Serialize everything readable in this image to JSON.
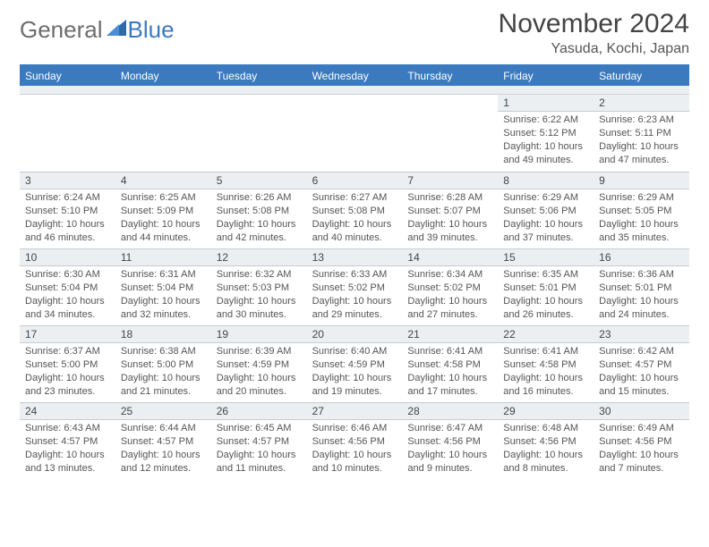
{
  "brand": {
    "word1": "General",
    "word2": "Blue"
  },
  "title": "November 2024",
  "location": "Yasuda, Kochi, Japan",
  "weekdays": [
    "Sunday",
    "Monday",
    "Tuesday",
    "Wednesday",
    "Thursday",
    "Friday",
    "Saturday"
  ],
  "colors": {
    "accent": "#3b7abf",
    "band": "#eceff1",
    "text": "#555555",
    "title": "#444444",
    "logo_gray": "#6d6d6d"
  },
  "weeks": [
    [
      {
        "day": "",
        "sunrise": "",
        "sunset": "",
        "daylight": ""
      },
      {
        "day": "",
        "sunrise": "",
        "sunset": "",
        "daylight": ""
      },
      {
        "day": "",
        "sunrise": "",
        "sunset": "",
        "daylight": ""
      },
      {
        "day": "",
        "sunrise": "",
        "sunset": "",
        "daylight": ""
      },
      {
        "day": "",
        "sunrise": "",
        "sunset": "",
        "daylight": ""
      },
      {
        "day": "1",
        "sunrise": "Sunrise: 6:22 AM",
        "sunset": "Sunset: 5:12 PM",
        "daylight": "Daylight: 10 hours and 49 minutes."
      },
      {
        "day": "2",
        "sunrise": "Sunrise: 6:23 AM",
        "sunset": "Sunset: 5:11 PM",
        "daylight": "Daylight: 10 hours and 47 minutes."
      }
    ],
    [
      {
        "day": "3",
        "sunrise": "Sunrise: 6:24 AM",
        "sunset": "Sunset: 5:10 PM",
        "daylight": "Daylight: 10 hours and 46 minutes."
      },
      {
        "day": "4",
        "sunrise": "Sunrise: 6:25 AM",
        "sunset": "Sunset: 5:09 PM",
        "daylight": "Daylight: 10 hours and 44 minutes."
      },
      {
        "day": "5",
        "sunrise": "Sunrise: 6:26 AM",
        "sunset": "Sunset: 5:08 PM",
        "daylight": "Daylight: 10 hours and 42 minutes."
      },
      {
        "day": "6",
        "sunrise": "Sunrise: 6:27 AM",
        "sunset": "Sunset: 5:08 PM",
        "daylight": "Daylight: 10 hours and 40 minutes."
      },
      {
        "day": "7",
        "sunrise": "Sunrise: 6:28 AM",
        "sunset": "Sunset: 5:07 PM",
        "daylight": "Daylight: 10 hours and 39 minutes."
      },
      {
        "day": "8",
        "sunrise": "Sunrise: 6:29 AM",
        "sunset": "Sunset: 5:06 PM",
        "daylight": "Daylight: 10 hours and 37 minutes."
      },
      {
        "day": "9",
        "sunrise": "Sunrise: 6:29 AM",
        "sunset": "Sunset: 5:05 PM",
        "daylight": "Daylight: 10 hours and 35 minutes."
      }
    ],
    [
      {
        "day": "10",
        "sunrise": "Sunrise: 6:30 AM",
        "sunset": "Sunset: 5:04 PM",
        "daylight": "Daylight: 10 hours and 34 minutes."
      },
      {
        "day": "11",
        "sunrise": "Sunrise: 6:31 AM",
        "sunset": "Sunset: 5:04 PM",
        "daylight": "Daylight: 10 hours and 32 minutes."
      },
      {
        "day": "12",
        "sunrise": "Sunrise: 6:32 AM",
        "sunset": "Sunset: 5:03 PM",
        "daylight": "Daylight: 10 hours and 30 minutes."
      },
      {
        "day": "13",
        "sunrise": "Sunrise: 6:33 AM",
        "sunset": "Sunset: 5:02 PM",
        "daylight": "Daylight: 10 hours and 29 minutes."
      },
      {
        "day": "14",
        "sunrise": "Sunrise: 6:34 AM",
        "sunset": "Sunset: 5:02 PM",
        "daylight": "Daylight: 10 hours and 27 minutes."
      },
      {
        "day": "15",
        "sunrise": "Sunrise: 6:35 AM",
        "sunset": "Sunset: 5:01 PM",
        "daylight": "Daylight: 10 hours and 26 minutes."
      },
      {
        "day": "16",
        "sunrise": "Sunrise: 6:36 AM",
        "sunset": "Sunset: 5:01 PM",
        "daylight": "Daylight: 10 hours and 24 minutes."
      }
    ],
    [
      {
        "day": "17",
        "sunrise": "Sunrise: 6:37 AM",
        "sunset": "Sunset: 5:00 PM",
        "daylight": "Daylight: 10 hours and 23 minutes."
      },
      {
        "day": "18",
        "sunrise": "Sunrise: 6:38 AM",
        "sunset": "Sunset: 5:00 PM",
        "daylight": "Daylight: 10 hours and 21 minutes."
      },
      {
        "day": "19",
        "sunrise": "Sunrise: 6:39 AM",
        "sunset": "Sunset: 4:59 PM",
        "daylight": "Daylight: 10 hours and 20 minutes."
      },
      {
        "day": "20",
        "sunrise": "Sunrise: 6:40 AM",
        "sunset": "Sunset: 4:59 PM",
        "daylight": "Daylight: 10 hours and 19 minutes."
      },
      {
        "day": "21",
        "sunrise": "Sunrise: 6:41 AM",
        "sunset": "Sunset: 4:58 PM",
        "daylight": "Daylight: 10 hours and 17 minutes."
      },
      {
        "day": "22",
        "sunrise": "Sunrise: 6:41 AM",
        "sunset": "Sunset: 4:58 PM",
        "daylight": "Daylight: 10 hours and 16 minutes."
      },
      {
        "day": "23",
        "sunrise": "Sunrise: 6:42 AM",
        "sunset": "Sunset: 4:57 PM",
        "daylight": "Daylight: 10 hours and 15 minutes."
      }
    ],
    [
      {
        "day": "24",
        "sunrise": "Sunrise: 6:43 AM",
        "sunset": "Sunset: 4:57 PM",
        "daylight": "Daylight: 10 hours and 13 minutes."
      },
      {
        "day": "25",
        "sunrise": "Sunrise: 6:44 AM",
        "sunset": "Sunset: 4:57 PM",
        "daylight": "Daylight: 10 hours and 12 minutes."
      },
      {
        "day": "26",
        "sunrise": "Sunrise: 6:45 AM",
        "sunset": "Sunset: 4:57 PM",
        "daylight": "Daylight: 10 hours and 11 minutes."
      },
      {
        "day": "27",
        "sunrise": "Sunrise: 6:46 AM",
        "sunset": "Sunset: 4:56 PM",
        "daylight": "Daylight: 10 hours and 10 minutes."
      },
      {
        "day": "28",
        "sunrise": "Sunrise: 6:47 AM",
        "sunset": "Sunset: 4:56 PM",
        "daylight": "Daylight: 10 hours and 9 minutes."
      },
      {
        "day": "29",
        "sunrise": "Sunrise: 6:48 AM",
        "sunset": "Sunset: 4:56 PM",
        "daylight": "Daylight: 10 hours and 8 minutes."
      },
      {
        "day": "30",
        "sunrise": "Sunrise: 6:49 AM",
        "sunset": "Sunset: 4:56 PM",
        "daylight": "Daylight: 10 hours and 7 minutes."
      }
    ]
  ]
}
